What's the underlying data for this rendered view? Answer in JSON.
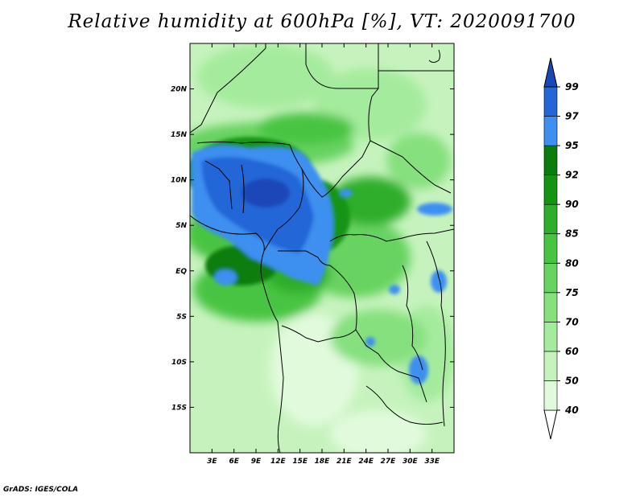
{
  "title": "Relative humidity at 600hPa [%], VT: 2020091700",
  "credit": "GrADS: IGES/COLA",
  "map": {
    "lon_range": [
      0,
      36
    ],
    "lat_range": [
      -20,
      25
    ],
    "x_ticks": [
      "3E",
      "6E",
      "9E",
      "12E",
      "15E",
      "18E",
      "21E",
      "24E",
      "27E",
      "30E",
      "33E"
    ],
    "x_tick_values": [
      3,
      6,
      9,
      12,
      15,
      18,
      21,
      24,
      27,
      30,
      33
    ],
    "y_ticks": [
      "20N",
      "15N",
      "10N",
      "5N",
      "EQ",
      "5S",
      "10S",
      "15S"
    ],
    "y_tick_values": [
      20,
      15,
      10,
      5,
      0,
      -5,
      -10,
      -15
    ]
  },
  "colorbar": {
    "levels": [
      "40",
      "50",
      "60",
      "70",
      "75",
      "80",
      "85",
      "90",
      "92",
      "95",
      "97",
      "99"
    ],
    "colors": [
      "#ffffff",
      "#e1fadc",
      "#c6f3bd",
      "#a5eb9d",
      "#86e07e",
      "#67d360",
      "#48c443",
      "#2fae2c",
      "#159414",
      "#0b7d0c",
      "#3d8ff0",
      "#2466d8",
      "#1a47b8"
    ]
  }
}
